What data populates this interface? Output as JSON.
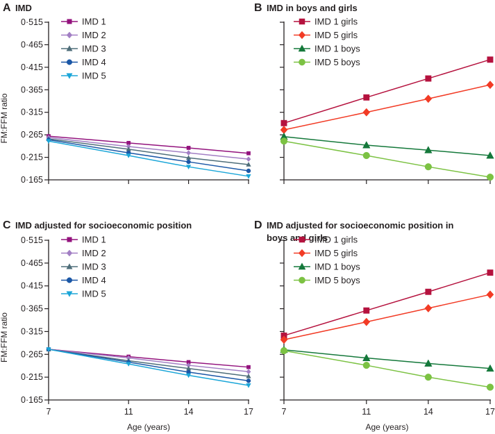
{
  "chart_data": [
    {
      "type": "line",
      "panel": "A",
      "title": "IMD",
      "xlabel": "",
      "ylabel": "FM:FFM ratio",
      "x": [
        7,
        11,
        14,
        17
      ],
      "yticks": [
        "0·165",
        "0·215",
        "0·265",
        "0·315",
        "0·365",
        "0·415",
        "0·465",
        "0·515"
      ],
      "xticks": [],
      "ylim": [
        0.165,
        0.515
      ],
      "legend": "top-left",
      "series": [
        {
          "name": "IMD 1",
          "marker": "square",
          "color": "#93127d",
          "values": [
            0.262,
            0.247,
            0.236,
            0.224
          ]
        },
        {
          "name": "IMD 2",
          "marker": "diamond",
          "color": "#a27fc4",
          "values": [
            0.259,
            0.239,
            0.225,
            0.211
          ]
        },
        {
          "name": "IMD 3",
          "marker": "triangle",
          "color": "#4f6e7a",
          "values": [
            0.256,
            0.233,
            0.214,
            0.199
          ]
        },
        {
          "name": "IMD 4",
          "marker": "circle",
          "color": "#1b57a6",
          "values": [
            0.254,
            0.225,
            0.205,
            0.185
          ]
        },
        {
          "name": "IMD 5",
          "marker": "triangle-down",
          "color": "#1ba6d8",
          "values": [
            0.251,
            0.219,
            0.194,
            0.173
          ]
        }
      ]
    },
    {
      "type": "line",
      "panel": "B",
      "title": "IMD in boys and girls",
      "xlabel": "",
      "ylabel": "",
      "x": [
        7,
        11,
        14,
        17
      ],
      "yticks": [],
      "xticks": [],
      "ylim": [
        0.165,
        0.515
      ],
      "legend": "top-left",
      "series": [
        {
          "name": "IMD 1 girls",
          "marker": "square",
          "color": "#b5123e",
          "values": [
            0.291,
            0.348,
            0.39,
            0.432
          ]
        },
        {
          "name": "IMD 5 girls",
          "marker": "diamond",
          "color": "#f23b25",
          "values": [
            0.276,
            0.315,
            0.345,
            0.376
          ]
        },
        {
          "name": "IMD 1 boys",
          "marker": "triangle",
          "color": "#14783a",
          "values": [
            0.261,
            0.242,
            0.231,
            0.219
          ]
        },
        {
          "name": "IMD 5 boys",
          "marker": "circle",
          "color": "#7cc243",
          "values": [
            0.251,
            0.219,
            0.194,
            0.171
          ]
        }
      ]
    },
    {
      "type": "line",
      "panel": "C",
      "title": "IMD adjusted for socioeconomic position",
      "xlabel": "Age (years)",
      "ylabel": "FM:FFM ratio",
      "x": [
        7,
        11,
        14,
        17
      ],
      "yticks": [
        "0·165",
        "0·215",
        "0·265",
        "0·315",
        "0·365",
        "0·415",
        "0·465",
        "0·515"
      ],
      "xticks": [
        "7",
        "11",
        "14",
        "17"
      ],
      "ylim": [
        0.165,
        0.515
      ],
      "legend": "top-left",
      "series": [
        {
          "name": "IMD 1",
          "marker": "square",
          "color": "#93127d",
          "values": [
            0.276,
            0.26,
            0.248,
            0.237
          ]
        },
        {
          "name": "IMD 2",
          "marker": "diamond",
          "color": "#a27fc4",
          "values": [
            0.276,
            0.257,
            0.241,
            0.227
          ]
        },
        {
          "name": "IMD 3",
          "marker": "triangle",
          "color": "#4f6e7a",
          "values": [
            0.276,
            0.251,
            0.234,
            0.217
          ]
        },
        {
          "name": "IMD 4",
          "marker": "circle",
          "color": "#1b57a6",
          "values": [
            0.276,
            0.248,
            0.226,
            0.207
          ]
        },
        {
          "name": "IMD 5",
          "marker": "triangle-down",
          "color": "#1ba6d8",
          "values": [
            0.276,
            0.244,
            0.219,
            0.197
          ]
        }
      ]
    },
    {
      "type": "line",
      "panel": "D",
      "title": "IMD adjusted for socioeconomic position in",
      "title_line2": "boys and girls",
      "xlabel": "Age (years)",
      "ylabel": "",
      "x": [
        7,
        11,
        14,
        17
      ],
      "yticks": [],
      "xticks": [
        "7",
        "11",
        "14",
        "17"
      ],
      "ylim": [
        0.165,
        0.515
      ],
      "legend": "top-left",
      "series": [
        {
          "name": "IMD 1 girls",
          "marker": "square",
          "color": "#b5123e",
          "values": [
            0.306,
            0.361,
            0.402,
            0.444
          ]
        },
        {
          "name": "IMD 5 girls",
          "marker": "diamond",
          "color": "#f23b25",
          "values": [
            0.297,
            0.336,
            0.366,
            0.396
          ]
        },
        {
          "name": "IMD 1 boys",
          "marker": "triangle",
          "color": "#14783a",
          "values": [
            0.275,
            0.257,
            0.245,
            0.234
          ]
        },
        {
          "name": "IMD 5 boys",
          "marker": "circle",
          "color": "#7cc243",
          "values": [
            0.273,
            0.241,
            0.215,
            0.193
          ]
        }
      ]
    }
  ]
}
